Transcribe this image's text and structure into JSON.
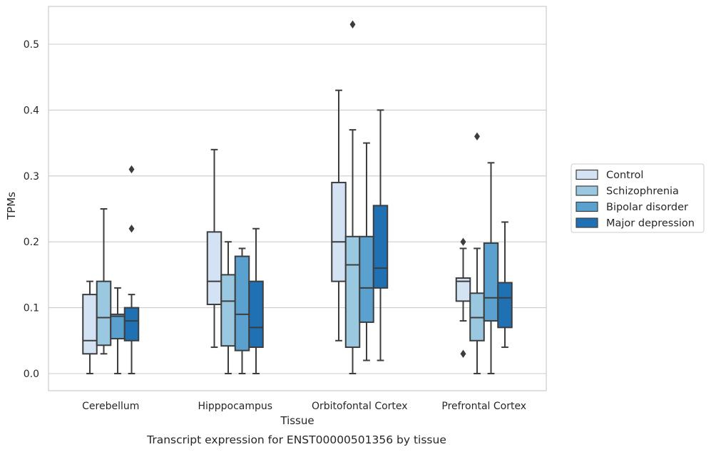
{
  "chart_data": {
    "type": "box",
    "xlabel": "Tissue",
    "ylabel": "TPMs",
    "caption": "Transcript expression for ENST00000501356 by tissue",
    "ylim": [
      -0.025,
      0.555
    ],
    "yticks": [
      0.0,
      0.1,
      0.2,
      0.3,
      0.4,
      0.5
    ],
    "ytick_labels": [
      "0.0",
      "0.1",
      "0.2",
      "0.3",
      "0.4",
      "0.5"
    ],
    "grid": true,
    "legend_position": "right",
    "categories": [
      "Cerebellum",
      "Hipppocampus",
      "Orbitofontal Cortex",
      "Prefrontal Cortex"
    ],
    "series": [
      {
        "name": "Control",
        "color": "#d3e3f3",
        "boxes": [
          {
            "whislo": 0.0,
            "q1": 0.03,
            "med": 0.05,
            "q3": 0.12,
            "whishi": 0.14,
            "fliers": []
          },
          {
            "whislo": 0.04,
            "q1": 0.105,
            "med": 0.14,
            "q3": 0.215,
            "whishi": 0.34,
            "fliers": []
          },
          {
            "whislo": 0.05,
            "q1": 0.14,
            "med": 0.2,
            "q3": 0.29,
            "whishi": 0.43,
            "fliers": []
          },
          {
            "whislo": 0.08,
            "q1": 0.11,
            "med": 0.14,
            "q3": 0.145,
            "whishi": 0.19,
            "fliers": [
              0.2,
              0.03
            ]
          }
        ]
      },
      {
        "name": "Schizophrenia",
        "color": "#9ac8e0",
        "boxes": [
          {
            "whislo": 0.03,
            "q1": 0.043,
            "med": 0.085,
            "q3": 0.14,
            "whishi": 0.25,
            "fliers": []
          },
          {
            "whislo": 0.0,
            "q1": 0.042,
            "med": 0.11,
            "q3": 0.15,
            "whishi": 0.2,
            "fliers": []
          },
          {
            "whislo": 0.0,
            "q1": 0.04,
            "med": 0.165,
            "q3": 0.208,
            "whishi": 0.37,
            "fliers": [
              0.53
            ]
          },
          {
            "whislo": 0.0,
            "q1": 0.05,
            "med": 0.085,
            "q3": 0.122,
            "whishi": 0.19,
            "fliers": [
              0.36
            ]
          }
        ]
      },
      {
        "name": "Bipolar disorder",
        "color": "#5aa1cf",
        "boxes": [
          {
            "whislo": 0.0,
            "q1": 0.053,
            "med": 0.087,
            "q3": 0.09,
            "whishi": 0.13,
            "fliers": []
          },
          {
            "whislo": 0.0,
            "q1": 0.035,
            "med": 0.09,
            "q3": 0.178,
            "whishi": 0.19,
            "fliers": []
          },
          {
            "whislo": 0.02,
            "q1": 0.078,
            "med": 0.13,
            "q3": 0.208,
            "whishi": 0.35,
            "fliers": []
          },
          {
            "whislo": 0.0,
            "q1": 0.08,
            "med": 0.115,
            "q3": 0.198,
            "whishi": 0.32,
            "fliers": []
          }
        ]
      },
      {
        "name": "Major depression",
        "color": "#2070b4",
        "boxes": [
          {
            "whislo": 0.0,
            "q1": 0.05,
            "med": 0.08,
            "q3": 0.1,
            "whishi": 0.12,
            "fliers": [
              0.31,
              0.22
            ]
          },
          {
            "whislo": 0.0,
            "q1": 0.04,
            "med": 0.07,
            "q3": 0.14,
            "whishi": 0.22,
            "fliers": []
          },
          {
            "whislo": 0.02,
            "q1": 0.13,
            "med": 0.16,
            "q3": 0.255,
            "whishi": 0.4,
            "fliers": []
          },
          {
            "whislo": 0.04,
            "q1": 0.07,
            "med": 0.115,
            "q3": 0.138,
            "whishi": 0.23,
            "fliers": []
          }
        ]
      }
    ]
  }
}
